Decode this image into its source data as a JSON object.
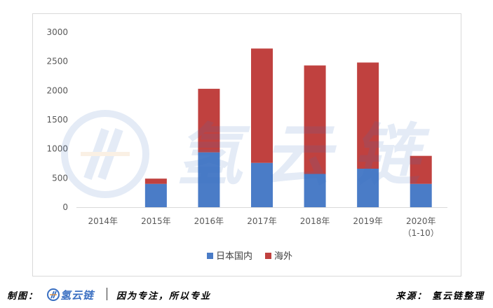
{
  "chart_data": {
    "type": "bar",
    "stacked": true,
    "categories": [
      "2014年",
      "2015年",
      "2016年",
      "2017年",
      "2018年",
      "2019年",
      "2020年\n（1-10）"
    ],
    "series": [
      {
        "name": "日本国内",
        "color": "#4a7cc7",
        "values": [
          0,
          400,
          940,
          760,
          570,
          660,
          400
        ]
      },
      {
        "name": "海外",
        "color": "#c0413f",
        "values": [
          0,
          90,
          1090,
          1960,
          1860,
          1820,
          480
        ]
      }
    ],
    "ylim": [
      0,
      3000
    ],
    "yticks": [
      0,
      500,
      1000,
      1500,
      2000,
      2500,
      3000
    ],
    "grid": false,
    "legend": "bottom",
    "title": "",
    "xlabel": "",
    "ylabel": ""
  },
  "watermark": {
    "text": "氢云链"
  },
  "footer": {
    "left_label": "制图：",
    "logo_text": "氢云链",
    "slogan": "因为专注，所以专业",
    "right": "来源：  氢云链整理"
  }
}
